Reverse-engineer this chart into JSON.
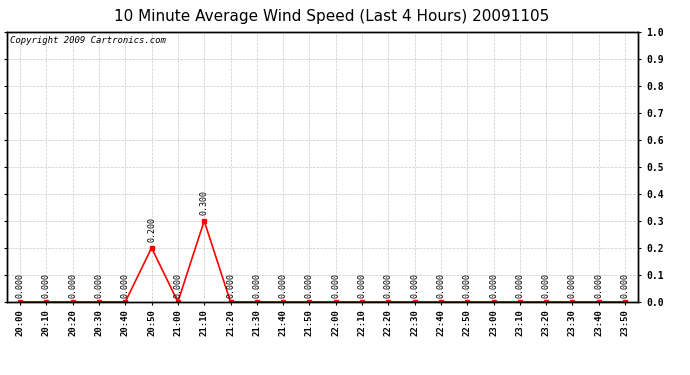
{
  "title": "10 Minute Average Wind Speed (Last 4 Hours) 20091105",
  "copyright": "Copyright 2009 Cartronics.com",
  "x_labels": [
    "20:00",
    "20:10",
    "20:20",
    "20:30",
    "20:40",
    "20:50",
    "21:00",
    "21:10",
    "21:20",
    "21:30",
    "21:40",
    "21:50",
    "22:00",
    "22:10",
    "22:20",
    "22:30",
    "22:40",
    "22:50",
    "23:00",
    "23:10",
    "23:20",
    "23:30",
    "23:40",
    "23:50"
  ],
  "y_values": [
    0.0,
    0.0,
    0.0,
    0.0,
    0.0,
    0.2,
    0.0,
    0.3,
    0.0,
    0.0,
    0.0,
    0.0,
    0.0,
    0.0,
    0.0,
    0.0,
    0.0,
    0.0,
    0.0,
    0.0,
    0.0,
    0.0,
    0.0,
    0.0
  ],
  "point_labels": [
    "0.000",
    "0.000",
    "0.000",
    "0.000",
    "0.000",
    "0.200",
    "0.000",
    "0.300",
    "0.000",
    "0.000",
    "0.000",
    "0.000",
    "0.000",
    "0.000",
    "0.000",
    "0.000",
    "0.000",
    "0.000",
    "0.000",
    "0.000",
    "0.000",
    "0.000",
    "0.000",
    "0.000"
  ],
  "line_color": "#ff0000",
  "bg_color": "#ffffff",
  "plot_bg_color": "#ffffff",
  "grid_color": "#c8c8c8",
  "ylim": [
    0.0,
    1.0
  ],
  "yticks": [
    0.0,
    0.1,
    0.2,
    0.3,
    0.4,
    0.5,
    0.6,
    0.7,
    0.8,
    0.9,
    1.0
  ],
  "title_fontsize": 11,
  "tick_fontsize": 6.5,
  "copyright_fontsize": 6.5,
  "point_label_fontsize": 6.0
}
